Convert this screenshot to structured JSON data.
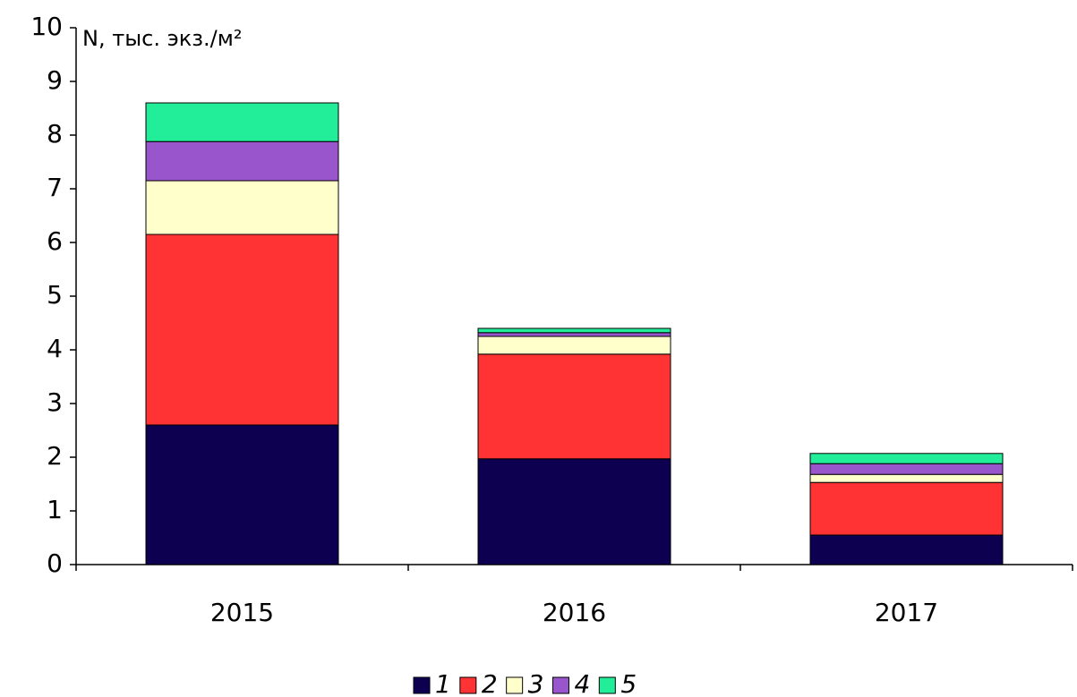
{
  "chart_data": {
    "type": "stacked-bar",
    "y_label": "N, тыс. экз./м²",
    "categories": [
      "2015",
      "2016",
      "2017"
    ],
    "series": [
      {
        "name": "1",
        "color": "#0d0050",
        "values": [
          2.6,
          1.97,
          0.55
        ]
      },
      {
        "name": "2",
        "color": "#ff3333",
        "values": [
          3.55,
          1.95,
          0.98
        ]
      },
      {
        "name": "3",
        "color": "#ffffcc",
        "values": [
          1.0,
          0.33,
          0.15
        ]
      },
      {
        "name": "4",
        "color": "#9955cc",
        "values": [
          0.73,
          0.07,
          0.2
        ]
      },
      {
        "name": "5",
        "color": "#22ee99",
        "values": [
          0.72,
          0.08,
          0.19
        ]
      }
    ],
    "ylim": [
      0,
      10
    ],
    "yticks": [
      0,
      1,
      2,
      3,
      4,
      5,
      6,
      7,
      8,
      9,
      10
    ],
    "legend": "bottom"
  }
}
